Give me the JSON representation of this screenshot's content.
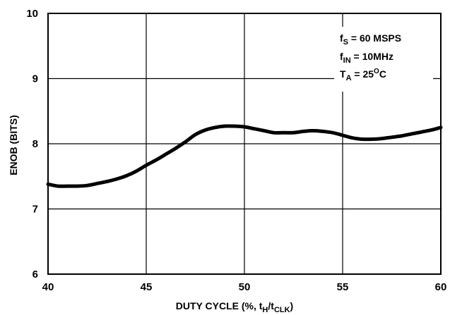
{
  "chart_data": {
    "type": "line",
    "title": "",
    "xlabel": "DUTY CYCLE (%, tH/tCLK)",
    "xlabel_parts": {
      "main": "DUTY CYCLE (%, t",
      "sub1": "H",
      "mid": "/t",
      "sub2": "CLK",
      "end": ")"
    },
    "ylabel": "ENOB (BITS)",
    "xlim": [
      40,
      60
    ],
    "ylim": [
      6,
      10
    ],
    "x_ticks": [
      40,
      45,
      50,
      55,
      60
    ],
    "y_ticks": [
      6,
      7,
      8,
      9,
      10
    ],
    "grid": true,
    "line_color": "#000000",
    "annotations": [
      {
        "name": "fs",
        "main": "f",
        "sub": "S",
        "rest": " = 60 MSPS"
      },
      {
        "name": "fin",
        "main": "f",
        "sub": "IN",
        "rest": " = 10MHz"
      },
      {
        "name": "ta",
        "main": "T",
        "sub": "A",
        "rest": " = 25",
        "sup": "O",
        "end": "C"
      }
    ],
    "series": [
      {
        "x": [
          40.0,
          40.5,
          41.0,
          41.5,
          42.0,
          42.5,
          43.0,
          43.5,
          44.0,
          44.5,
          45.0,
          45.5,
          46.0,
          46.5,
          47.0,
          47.5,
          48.0,
          48.5,
          49.0,
          49.5,
          50.0,
          50.5,
          51.0,
          51.5,
          52.0,
          52.5,
          53.0,
          53.5,
          54.0,
          54.5,
          55.0,
          55.5,
          56.0,
          56.5,
          57.0,
          57.5,
          58.0,
          58.5,
          59.0,
          59.5,
          60.0
        ],
        "values": [
          7.38,
          7.35,
          7.35,
          7.35,
          7.36,
          7.39,
          7.42,
          7.46,
          7.51,
          7.58,
          7.67,
          7.75,
          7.84,
          7.93,
          8.03,
          8.14,
          8.21,
          8.25,
          8.27,
          8.27,
          8.26,
          8.23,
          8.2,
          8.17,
          8.17,
          8.17,
          8.19,
          8.2,
          8.19,
          8.17,
          8.13,
          8.09,
          8.07,
          8.07,
          8.08,
          8.1,
          8.12,
          8.15,
          8.18,
          8.21,
          8.25
        ]
      }
    ]
  }
}
